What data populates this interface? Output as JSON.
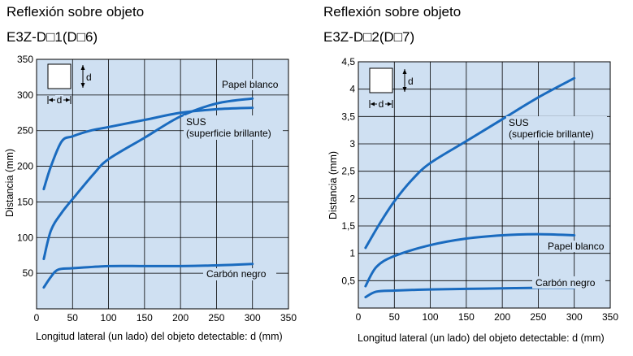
{
  "chart_data": [
    {
      "type": "line",
      "title": "Reflexión sobre objeto",
      "subtitle": "E3Z-D□1(D□6)",
      "xlabel": "Longitud lateral (un lado) del objeto detectable: d (mm)",
      "ylabel": "Distancia (mm)",
      "xlim": [
        0,
        350
      ],
      "ylim": [
        0,
        350
      ],
      "xticks": [
        "0",
        "50",
        "100",
        "150",
        "200",
        "250",
        "300",
        "350"
      ],
      "yticks": [
        "0",
        "50",
        "100",
        "150",
        "200",
        "250",
        "300",
        "350"
      ],
      "grid": true,
      "inset_label": "d",
      "series": [
        {
          "name": "Papel blanco",
          "x": [
            10,
            20,
            35,
            55,
            80,
            100,
            150,
            200,
            250,
            300
          ],
          "y": [
            70,
            110,
            135,
            160,
            190,
            210,
            240,
            270,
            288,
            295
          ]
        },
        {
          "name": "SUS (superficie brillante)",
          "x": [
            10,
            20,
            35,
            50,
            75,
            100,
            150,
            200,
            250,
            300
          ],
          "y": [
            168,
            200,
            235,
            242,
            250,
            255,
            265,
            275,
            280,
            282
          ]
        },
        {
          "name": "Carbón negro",
          "x": [
            10,
            20,
            30,
            50,
            100,
            150,
            200,
            250,
            300
          ],
          "y": [
            30,
            45,
            55,
            57,
            60,
            60,
            60,
            61,
            63
          ]
        }
      ],
      "labels": [
        "Papel blanco",
        "SUS",
        "(superficie brillante)",
        "Carbón negro"
      ]
    },
    {
      "type": "line",
      "title": "Reflexión sobre objeto",
      "subtitle": "E3Z-D□2(D□7)",
      "xlabel": "Longitud lateral (un lado) del objeto detectable: d (mm)",
      "ylabel": "Distancia (mm)",
      "xlim": [
        0,
        350
      ],
      "ylim": [
        0,
        4.5
      ],
      "xticks": [
        "0",
        "50",
        "100",
        "150",
        "200",
        "250",
        "300",
        "350"
      ],
      "yticks": [
        "0",
        "0,5",
        "1",
        "1,5",
        "2",
        "2,5",
        "3",
        "3,5",
        "4",
        "4,5"
      ],
      "grid": true,
      "inset_label": "d",
      "series": [
        {
          "name": "SUS (superficie brillante)",
          "x": [
            10,
            30,
            50,
            75,
            100,
            150,
            200,
            250,
            300
          ],
          "y": [
            1.1,
            1.55,
            1.95,
            2.35,
            2.65,
            3.05,
            3.45,
            3.85,
            4.2
          ]
        },
        {
          "name": "Papel blanco",
          "x": [
            10,
            25,
            50,
            100,
            150,
            200,
            250,
            300
          ],
          "y": [
            0.4,
            0.75,
            0.95,
            1.15,
            1.27,
            1.33,
            1.35,
            1.33
          ]
        },
        {
          "name": "Carbón negro",
          "x": [
            10,
            25,
            50,
            100,
            150,
            200,
            250,
            300
          ],
          "y": [
            0.2,
            0.3,
            0.32,
            0.34,
            0.35,
            0.36,
            0.37,
            0.37
          ]
        }
      ],
      "labels": [
        "SUS",
        "(superficie brillante)",
        "Papel blanco",
        "Carbón negro"
      ]
    }
  ]
}
